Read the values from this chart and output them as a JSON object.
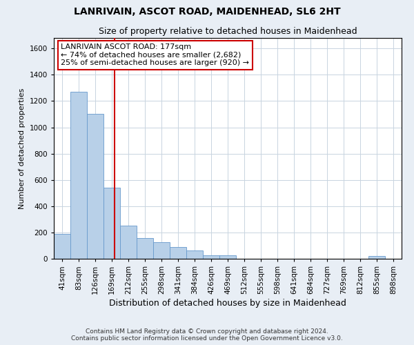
{
  "title": "LANRIVAIN, ASCOT ROAD, MAIDENHEAD, SL6 2HT",
  "subtitle": "Size of property relative to detached houses in Maidenhead",
  "xlabel": "Distribution of detached houses by size in Maidenhead",
  "ylabel": "Number of detached properties",
  "footer_line1": "Contains HM Land Registry data © Crown copyright and database right 2024.",
  "footer_line2": "Contains public sector information licensed under the Open Government Licence v3.0.",
  "categories": [
    "41sqm",
    "83sqm",
    "126sqm",
    "169sqm",
    "212sqm",
    "255sqm",
    "298sqm",
    "341sqm",
    "384sqm",
    "426sqm",
    "469sqm",
    "512sqm",
    "555sqm",
    "598sqm",
    "641sqm",
    "684sqm",
    "727sqm",
    "769sqm",
    "812sqm",
    "855sqm",
    "898sqm"
  ],
  "values": [
    190,
    1270,
    1100,
    540,
    250,
    155,
    125,
    90,
    65,
    25,
    25,
    0,
    0,
    0,
    0,
    0,
    0,
    0,
    0,
    20,
    0
  ],
  "bar_color": "#b8d0e8",
  "bar_edge_color": "#6699cc",
  "vline_color": "#cc0000",
  "annotation_text": "LANRIVAIN ASCOT ROAD: 177sqm\n← 74% of detached houses are smaller (2,682)\n25% of semi-detached houses are larger (920) →",
  "annotation_box_color": "#ffffff",
  "annotation_box_edge": "#cc0000",
  "ylim": [
    0,
    1680
  ],
  "yticks": [
    0,
    200,
    400,
    600,
    800,
    1000,
    1200,
    1400,
    1600
  ],
  "bg_color": "#e8eef5",
  "plot_bg_color": "#ffffff",
  "grid_color": "#c8d4e0",
  "title_fontsize": 10,
  "subtitle_fontsize": 9,
  "xlabel_fontsize": 9,
  "ylabel_fontsize": 8,
  "tick_fontsize": 7.5,
  "footer_fontsize": 6.5,
  "annot_fontsize": 8
}
